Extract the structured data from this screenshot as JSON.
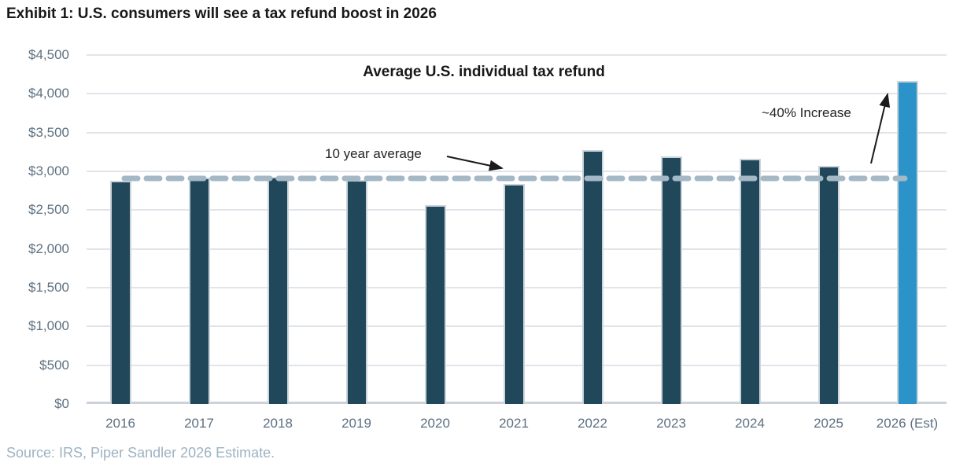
{
  "header": {
    "exhibit_title": "Exhibit 1: U.S. consumers will see a tax refund boost in 2026"
  },
  "footer": {
    "source": "Source: IRS, Piper Sandler 2026 Estimate."
  },
  "chart_data": {
    "type": "bar",
    "title": "Average U.S. individual tax refund",
    "categories": [
      "2016",
      "2017",
      "2018",
      "2019",
      "2020",
      "2021",
      "2022",
      "2023",
      "2024",
      "2025",
      "2026 (Est)"
    ],
    "values": [
      2860,
      2895,
      2905,
      2865,
      2545,
      2815,
      3250,
      3170,
      3140,
      3050,
      4150
    ],
    "highlight_category": "2026 (Est)",
    "increase_label": "~40% Increase",
    "reference_line": {
      "label": "10 year average",
      "value": 2955,
      "style": "dashed",
      "color": "#a4b8c6"
    },
    "ylim": [
      0,
      4500
    ],
    "ytick_step": 500,
    "ytick_labels": [
      "$4,500",
      "$4,000",
      "$3,500",
      "$3,000",
      "$2,500",
      "$2,000",
      "$1,500",
      "$1,000",
      "$500",
      "$0"
    ],
    "xlabel": "",
    "ylabel": "",
    "grid": true,
    "legend": "none",
    "bar_color": "#20485a",
    "highlight_color": "#2b93c8",
    "annotation_arrow_color": "#1b1b1b"
  }
}
